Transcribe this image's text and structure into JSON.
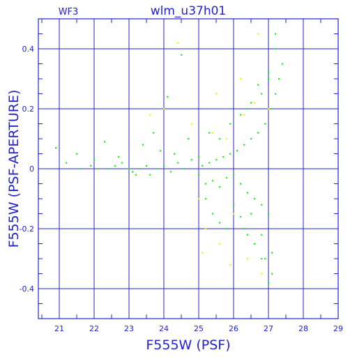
{
  "chart_data": {
    "type": "scatter",
    "title": "wlm_u37h01",
    "corner_label": "WF3",
    "xlabel": "F555W (PSF)",
    "ylabel": "F555W (PSF-APERTURE)",
    "xlim": [
      20.4,
      29.0
    ],
    "ylim": [
      -0.5,
      0.5
    ],
    "xticks": [
      21,
      22,
      23,
      24,
      25,
      26,
      27,
      28,
      29
    ],
    "yticks": [
      -0.4,
      -0.2,
      0,
      0.2,
      0.4
    ],
    "xtick_labels": [
      "21",
      "22",
      "23",
      "24",
      "25",
      "26",
      "27",
      "28",
      "29"
    ],
    "ytick_labels": [
      "-0.4",
      "-0.2",
      "0",
      "0.2",
      "0.4"
    ],
    "grid": true,
    "colors": {
      "axis": "#2222cc",
      "grid": "#2222cc",
      "series_main": "#22ee22",
      "series_secondary": "#ffee00"
    },
    "series": [
      {
        "color": "#22ee22",
        "description": "dense cloud of measured stars",
        "x": [
          20.9,
          21.2,
          21.6,
          21.9,
          22.1,
          22.4,
          22.6,
          22.8,
          23.0,
          23.1,
          23.3,
          23.5,
          23.6,
          23.8,
          24.0,
          24.2,
          24.4,
          24.6,
          24.8,
          25.0,
          25.1,
          25.2,
          25.3,
          25.4,
          25.5,
          25.6,
          25.7,
          25.8,
          25.9,
          26.0,
          26.1,
          26.2,
          26.3,
          26.4,
          26.5,
          26.6,
          26.7,
          26.8,
          26.9,
          27.0,
          27.1,
          27.2,
          27.3,
          27.4,
          23.4,
          23.9,
          24.3,
          24.7,
          25.0,
          25.3,
          25.6,
          25.9,
          26.2,
          26.5,
          26.8,
          27.0,
          27.2,
          26.3,
          26.6,
          26.9,
          27.1,
          26.4,
          26.7,
          27.0,
          27.2,
          26.5,
          26.8,
          27.1,
          25.2,
          25.4,
          25.6,
          25.8,
          26.0,
          26.2,
          26.4,
          26.6,
          26.8,
          27.0,
          21.5,
          22.0,
          22.7,
          23.2,
          24.5,
          24.1,
          23.7,
          22.3
        ],
        "y": [
          0.07,
          0.02,
          0.0,
          0.01,
          0.0,
          0.0,
          0.01,
          0.02,
          0.0,
          -0.01,
          0.0,
          0.01,
          -0.02,
          0.0,
          0.01,
          -0.01,
          0.02,
          0.0,
          0.03,
          -0.02,
          0.01,
          -0.05,
          0.02,
          -0.04,
          0.03,
          -0.06,
          0.04,
          -0.03,
          0.05,
          -0.02,
          0.06,
          -0.05,
          0.08,
          -0.08,
          0.1,
          -0.1,
          0.12,
          -0.12,
          0.15,
          -0.15,
          0.2,
          0.25,
          0.3,
          0.35,
          0.08,
          0.06,
          0.05,
          0.1,
          0.04,
          0.12,
          0.1,
          0.15,
          0.18,
          0.22,
          0.25,
          0.3,
          0.4,
          -0.2,
          -0.25,
          -0.3,
          -0.35,
          0.2,
          0.28,
          0.32,
          0.45,
          -0.15,
          -0.22,
          -0.28,
          -0.1,
          -0.15,
          -0.18,
          -0.2,
          -0.12,
          -0.16,
          -0.22,
          -0.25,
          -0.3,
          -0.38,
          0.05,
          0.03,
          0.04,
          -0.02,
          0.38,
          0.24,
          0.12,
          0.09
        ]
      },
      {
        "color": "#ffee00",
        "description": "sparse secondary points",
        "x": [
          23.6,
          24.0,
          24.4,
          24.8,
          25.0,
          25.2,
          25.4,
          25.6,
          25.8,
          26.0,
          26.2,
          26.4,
          26.6,
          26.8,
          27.0,
          25.1,
          25.5,
          25.9,
          26.3,
          26.7
        ],
        "y": [
          0.18,
          0.2,
          0.42,
          0.15,
          -0.1,
          -0.2,
          0.12,
          -0.25,
          0.1,
          -0.15,
          0.3,
          -0.3,
          0.22,
          -0.35,
          0.2,
          -0.28,
          0.25,
          -0.32,
          0.18,
          0.45
        ]
      }
    ]
  }
}
